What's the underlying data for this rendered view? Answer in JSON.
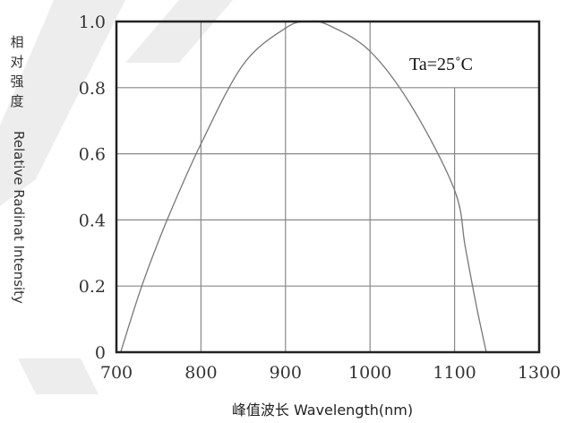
{
  "chart_data": {
    "type": "line",
    "title": "",
    "annotation": "Ta=25˚C",
    "ylabel_zh": [
      "相",
      "对",
      "强",
      "度"
    ],
    "ylabel_en": "Relative Radinat Intensity",
    "xlabel": "峰值波长  Wavelength(nm)",
    "x_ticks": [
      700,
      800,
      900,
      1000,
      1100,
      1300
    ],
    "x_tick_labels": [
      "700",
      "800",
      "900",
      "1000",
      "1100",
      "1300"
    ],
    "y_ticks": [
      0,
      0.2,
      0.4,
      0.6,
      0.8,
      1.0
    ],
    "y_tick_labels": [
      "0",
      "0.2",
      "0.4",
      "0.6",
      "0.8",
      "1.0"
    ],
    "grid": true,
    "series": [
      {
        "x": [
          705,
          730,
          760,
          800,
          850,
          900,
          925,
          950,
          1000,
          1050,
          1100,
          1125,
          1150,
          1175
        ],
        "y": [
          0.0,
          0.2,
          0.4,
          0.63,
          0.87,
          0.98,
          1.0,
          0.99,
          0.91,
          0.74,
          0.49,
          0.32,
          0.15,
          0.0
        ]
      }
    ],
    "line_color": "#777777"
  }
}
